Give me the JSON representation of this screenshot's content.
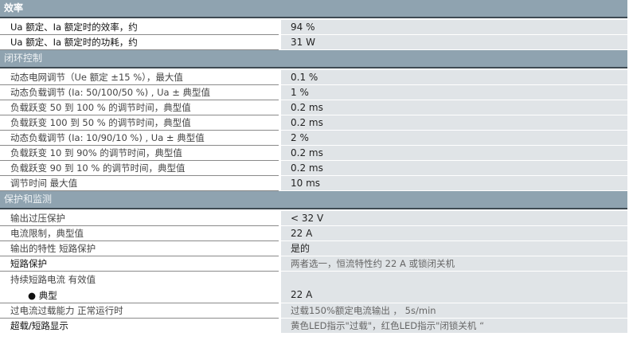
{
  "sections": [
    {
      "title": "效率",
      "rows": [
        {
          "label": "Ua 额定、Ia 额定时的效率，约",
          "value": "94 %"
        },
        {
          "label": "Ua 额定、Ia 额定时的功耗，约",
          "value": "31 W"
        }
      ]
    },
    {
      "title": "闭环控制",
      "rows": [
        {
          "label": "动态电网调节（Ue 额定 ±15 %），最大值",
          "value": "0.1 %"
        },
        {
          "label": "动态负载调节 (Ia: 50/100/50 %) , Ua ± 典型值",
          "value": "1 %"
        },
        {
          "label": "负载跃变 50 到 100 % 的调节时间，典型值",
          "value": "0.2 ms"
        },
        {
          "label": "负载跃变 100 到 50 % 的调节时间，典型值",
          "value": "0.2 ms"
        },
        {
          "label": "动态负载调节 (Ia: 10/90/10 %) , Ua ± 典型值",
          "value": "2 %"
        },
        {
          "label": "负载跃变 10 到 90% 的调节时间，典型值",
          "value": "0.2 ms"
        },
        {
          "label": "负载跃变 90 到 10 % 的调节时间，典型值",
          "value": "0.2 ms"
        },
        {
          "label": "调节时间 最大值",
          "value": "10 ms"
        }
      ]
    },
    {
      "title": "保护和监测",
      "rows": [
        {
          "label": "输出过压保护",
          "value": "< 32 V"
        },
        {
          "label": "电流限制，典型值",
          "value": "22 A"
        },
        {
          "label": "输出的特性 短路保护",
          "value": "是的"
        },
        {
          "label": "短路保护",
          "value": "两者选一，恒流特性约 22 A 或锁闭关机"
        },
        {
          "label": "持续短路电流 有效值",
          "sublabel": "● 典型",
          "value": "22 A"
        },
        {
          "label": "过电流过载能力 正常运行时",
          "value": "过载150%额定电流输出 ， 5s/min"
        },
        {
          "label": "超载/短路显示",
          "value": "黄色LED指示\"过载\"，红色LED指示\"闭锁关机 “"
        }
      ]
    }
  ]
}
